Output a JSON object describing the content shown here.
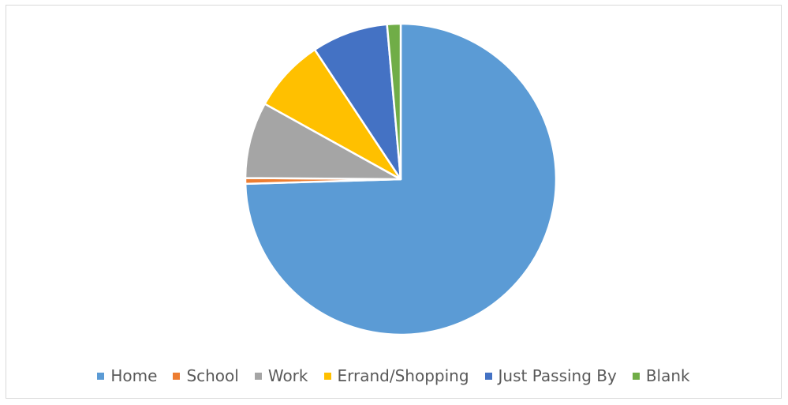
{
  "chart_data": {
    "type": "pie",
    "title": "",
    "categories": [
      "Home",
      "School",
      "Work",
      "Errand/Shopping",
      "Just Passing By",
      "Blank"
    ],
    "values": [
      74.3,
      0.6,
      7.9,
      7.6,
      7.9,
      1.4
    ],
    "colors": [
      "#5b9bd5",
      "#ed7d31",
      "#a5a5a5",
      "#ffc000",
      "#4472c4",
      "#70ad47"
    ],
    "legend_position": "bottom",
    "start_angle_deg": 0,
    "direction": "clockwise"
  }
}
